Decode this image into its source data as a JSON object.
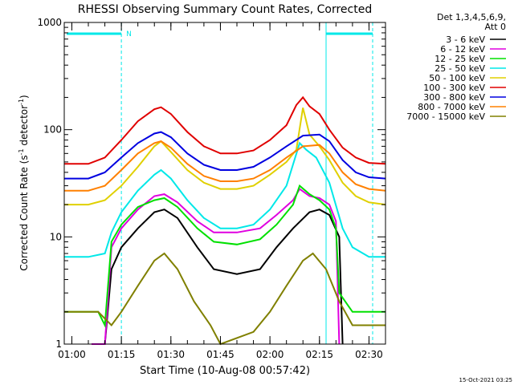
{
  "chart_data": {
    "type": "line",
    "title": "RHESSI Observing Summary Count Rates, Corrected",
    "xlabel": "Start Time (10-Aug-08 00:57:42)",
    "ylabel_parts": [
      "Corrected Count Rate (s",
      "-1",
      " detector",
      "-1",
      ")"
    ],
    "y_scale": "log",
    "ylim": [
      1,
      1000
    ],
    "xlim": [
      "00:57:42",
      "02:35:00"
    ],
    "x_ticks": [
      "01:00",
      "01:15",
      "01:30",
      "01:45",
      "02:00",
      "02:15",
      "02:30"
    ],
    "y_ticks": [
      1,
      10,
      100,
      1000
    ],
    "y_tick_labels": [
      "1",
      "10",
      "100",
      "1000"
    ],
    "legend_header": [
      "Det 1,3,4,5,6,9,",
      "Att 0"
    ],
    "legend_position": "top-right outside",
    "footer_timestamp": "15-Oct-2021 03:25",
    "night_marker": "N",
    "series": [
      {
        "name": "3 - 6 keV",
        "color": "#000000",
        "points": [
          [
            "01:06",
            1
          ],
          [
            "01:10",
            1
          ],
          [
            "01:12",
            5
          ],
          [
            "01:15",
            8
          ],
          [
            "01:20",
            12
          ],
          [
            "01:25",
            17
          ],
          [
            "01:28",
            18
          ],
          [
            "01:32",
            15
          ],
          [
            "01:38",
            8
          ],
          [
            "01:43",
            5
          ],
          [
            "01:50",
            4.5
          ],
          [
            "01:57",
            5
          ],
          [
            "02:02",
            8
          ],
          [
            "02:07",
            12
          ],
          [
            "02:12",
            17
          ],
          [
            "02:15",
            18
          ],
          [
            "02:18",
            16
          ],
          [
            "02:21",
            10
          ],
          [
            "02:22",
            1
          ]
        ]
      },
      {
        "name": "6 - 12 keV",
        "color": "#e000e0",
        "points": [
          [
            "01:06",
            1
          ],
          [
            "01:10",
            1
          ],
          [
            "01:12",
            8
          ],
          [
            "01:15",
            12
          ],
          [
            "01:20",
            18
          ],
          [
            "01:25",
            24
          ],
          [
            "01:28",
            25
          ],
          [
            "01:32",
            21
          ],
          [
            "01:38",
            14
          ],
          [
            "01:43",
            11
          ],
          [
            "01:50",
            11
          ],
          [
            "01:57",
            12
          ],
          [
            "02:02",
            16
          ],
          [
            "02:07",
            22
          ],
          [
            "02:09",
            28
          ],
          [
            "02:12",
            24
          ],
          [
            "02:15",
            23
          ],
          [
            "02:18",
            20
          ],
          [
            "02:20",
            14
          ],
          [
            "02:21",
            1
          ]
        ]
      },
      {
        "name": "12 - 25 keV",
        "color": "#00e000",
        "points": [
          [
            "00:57:42",
            2
          ],
          [
            "01:08",
            2
          ],
          [
            "01:10",
            1.5
          ],
          [
            "01:12",
            9
          ],
          [
            "01:15",
            13
          ],
          [
            "01:20",
            19
          ],
          [
            "01:25",
            22
          ],
          [
            "01:28",
            23
          ],
          [
            "01:32",
            19
          ],
          [
            "01:38",
            12
          ],
          [
            "01:43",
            9
          ],
          [
            "01:50",
            8.5
          ],
          [
            "01:57",
            9.5
          ],
          [
            "02:02",
            13
          ],
          [
            "02:07",
            20
          ],
          [
            "02:09",
            30
          ],
          [
            "02:12",
            25
          ],
          [
            "02:15",
            22
          ],
          [
            "02:18",
            18
          ],
          [
            "02:20",
            12
          ],
          [
            "02:21",
            3
          ],
          [
            "02:25",
            2
          ],
          [
            "02:35",
            2
          ]
        ]
      },
      {
        "name": "25 - 50 keV",
        "color": "#00e8e8",
        "points": [
          [
            "00:57:42",
            6.5
          ],
          [
            "01:05",
            6.5
          ],
          [
            "01:10",
            7
          ],
          [
            "01:12",
            11
          ],
          [
            "01:15",
            17
          ],
          [
            "01:20",
            27
          ],
          [
            "01:25",
            38
          ],
          [
            "01:27",
            42
          ],
          [
            "01:30",
            35
          ],
          [
            "01:35",
            22
          ],
          [
            "01:40",
            15
          ],
          [
            "01:45",
            12
          ],
          [
            "01:50",
            12
          ],
          [
            "01:55",
            13
          ],
          [
            "02:00",
            18
          ],
          [
            "02:05",
            30
          ],
          [
            "02:09",
            75
          ],
          [
            "02:11",
            65
          ],
          [
            "02:14",
            55
          ],
          [
            "02:18",
            32
          ],
          [
            "02:22",
            12
          ],
          [
            "02:25",
            8
          ],
          [
            "02:30",
            6.5
          ],
          [
            "02:35",
            6.5
          ]
        ]
      },
      {
        "name": "50 - 100 keV",
        "color": "#e0d000",
        "points": [
          [
            "00:57:42",
            20
          ],
          [
            "01:05",
            20
          ],
          [
            "01:10",
            22
          ],
          [
            "01:15",
            30
          ],
          [
            "01:20",
            45
          ],
          [
            "01:25",
            70
          ],
          [
            "01:27",
            78
          ],
          [
            "01:30",
            62
          ],
          [
            "01:35",
            42
          ],
          [
            "01:40",
            32
          ],
          [
            "01:45",
            28
          ],
          [
            "01:50",
            28
          ],
          [
            "01:55",
            30
          ],
          [
            "02:00",
            38
          ],
          [
            "02:05",
            50
          ],
          [
            "02:08",
            65
          ],
          [
            "02:10",
            160
          ],
          [
            "02:12",
            90
          ],
          [
            "02:15",
            70
          ],
          [
            "02:18",
            52
          ],
          [
            "02:22",
            32
          ],
          [
            "02:26",
            24
          ],
          [
            "02:30",
            21
          ],
          [
            "02:35",
            20
          ]
        ]
      },
      {
        "name": "100 - 300 keV",
        "color": "#e00000",
        "points": [
          [
            "00:57:42",
            48
          ],
          [
            "01:05",
            48
          ],
          [
            "01:10",
            55
          ],
          [
            "01:15",
            80
          ],
          [
            "01:20",
            120
          ],
          [
            "01:25",
            155
          ],
          [
            "01:27",
            162
          ],
          [
            "01:30",
            140
          ],
          [
            "01:35",
            95
          ],
          [
            "01:40",
            70
          ],
          [
            "01:45",
            60
          ],
          [
            "01:50",
            60
          ],
          [
            "01:55",
            64
          ],
          [
            "02:00",
            80
          ],
          [
            "02:05",
            110
          ],
          [
            "02:08",
            170
          ],
          [
            "02:10",
            200
          ],
          [
            "02:12",
            165
          ],
          [
            "02:15",
            140
          ],
          [
            "02:18",
            100
          ],
          [
            "02:22",
            68
          ],
          [
            "02:26",
            55
          ],
          [
            "02:30",
            49
          ],
          [
            "02:35",
            48
          ]
        ]
      },
      {
        "name": "300 - 800 keV",
        "color": "#0000e0",
        "points": [
          [
            "00:57:42",
            35
          ],
          [
            "01:05",
            35
          ],
          [
            "01:10",
            40
          ],
          [
            "01:15",
            55
          ],
          [
            "01:20",
            75
          ],
          [
            "01:25",
            92
          ],
          [
            "01:27",
            95
          ],
          [
            "01:30",
            85
          ],
          [
            "01:35",
            60
          ],
          [
            "01:40",
            47
          ],
          [
            "01:45",
            42
          ],
          [
            "01:50",
            42
          ],
          [
            "01:55",
            45
          ],
          [
            "02:00",
            55
          ],
          [
            "02:05",
            70
          ],
          [
            "02:10",
            88
          ],
          [
            "02:15",
            90
          ],
          [
            "02:18",
            78
          ],
          [
            "02:22",
            52
          ],
          [
            "02:26",
            40
          ],
          [
            "02:30",
            36
          ],
          [
            "02:35",
            35
          ]
        ]
      },
      {
        "name": "800 - 7000 keV",
        "color": "#ff8000",
        "points": [
          [
            "00:57:42",
            27
          ],
          [
            "01:05",
            27
          ],
          [
            "01:10",
            30
          ],
          [
            "01:15",
            42
          ],
          [
            "01:20",
            60
          ],
          [
            "01:25",
            75
          ],
          [
            "01:27",
            78
          ],
          [
            "01:30",
            68
          ],
          [
            "01:35",
            48
          ],
          [
            "01:40",
            37
          ],
          [
            "01:45",
            33
          ],
          [
            "01:50",
            33
          ],
          [
            "01:55",
            35
          ],
          [
            "02:00",
            42
          ],
          [
            "02:05",
            55
          ],
          [
            "02:10",
            70
          ],
          [
            "02:15",
            72
          ],
          [
            "02:18",
            60
          ],
          [
            "02:22",
            40
          ],
          [
            "02:26",
            31
          ],
          [
            "02:30",
            28
          ],
          [
            "02:35",
            27
          ]
        ]
      },
      {
        "name": "7000 - 15000 keV",
        "color": "#808000",
        "points": [
          [
            "00:57:42",
            2
          ],
          [
            "01:08",
            2
          ],
          [
            "01:12",
            1.5
          ],
          [
            "01:15",
            2
          ],
          [
            "01:20",
            3.5
          ],
          [
            "01:25",
            6
          ],
          [
            "01:28",
            7
          ],
          [
            "01:32",
            5
          ],
          [
            "01:37",
            2.5
          ],
          [
            "01:42",
            1.5
          ],
          [
            "01:45",
            1
          ],
          [
            "01:55",
            1.3
          ],
          [
            "02:00",
            2
          ],
          [
            "02:05",
            3.5
          ],
          [
            "02:10",
            6
          ],
          [
            "02:13",
            7
          ],
          [
            "02:17",
            5
          ],
          [
            "02:21",
            2.5
          ],
          [
            "02:25",
            1.5
          ],
          [
            "02:35",
            1.5
          ]
        ]
      }
    ]
  }
}
